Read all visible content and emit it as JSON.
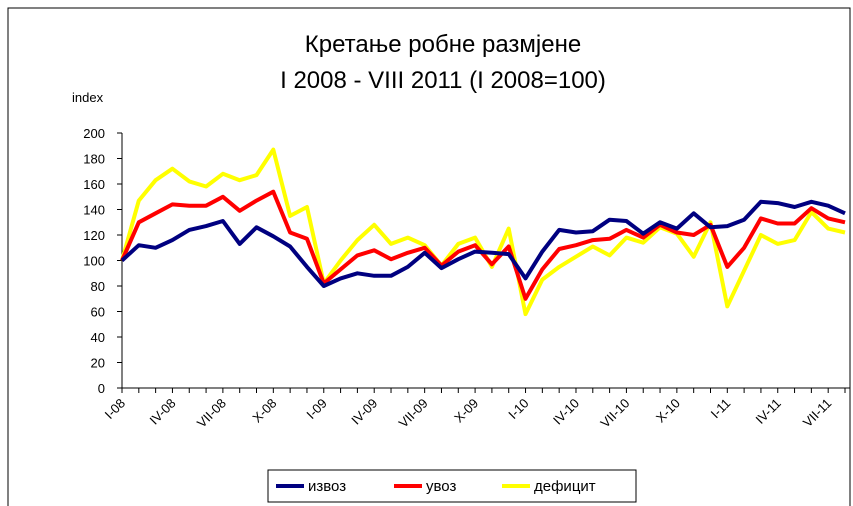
{
  "chart_data": {
    "type": "line",
    "title": "Кретање робне размјене",
    "subtitle": "I 2008 - VIII 2011 (I 2008=100)",
    "y_label": "index",
    "categories": [
      "I-08",
      null,
      null,
      "IV-08",
      null,
      null,
      "VII-08",
      null,
      null,
      "X-08",
      null,
      null,
      "I-09",
      null,
      null,
      "IV-09",
      null,
      null,
      "VII-09",
      null,
      null,
      "X-09",
      null,
      null,
      "I-10",
      null,
      null,
      "IV-10",
      null,
      null,
      "VII-10",
      null,
      null,
      "X-10",
      null,
      null,
      "I-11",
      null,
      null,
      "IV-11",
      null,
      null,
      "VII-11",
      null
    ],
    "series": [
      {
        "name": "извоз",
        "color": "#000080",
        "values": [
          100,
          112,
          110,
          116,
          124,
          127,
          131,
          113,
          126,
          119,
          111,
          95,
          80,
          86,
          90,
          88,
          88,
          95,
          106,
          94,
          101,
          107,
          106,
          105,
          86,
          107,
          124,
          122,
          123,
          132,
          131,
          121,
          130,
          125,
          137,
          126,
          127,
          132,
          146,
          145,
          142,
          146,
          143,
          137
        ]
      },
      {
        "name": "увоз",
        "color": "#ff0000",
        "values": [
          100,
          130,
          137,
          144,
          143,
          143,
          150,
          139,
          147,
          154,
          122,
          117,
          82,
          93,
          104,
          108,
          101,
          106,
          110,
          96,
          107,
          112,
          97,
          111,
          70,
          93,
          109,
          112,
          116,
          117,
          124,
          118,
          128,
          122,
          120,
          128,
          95,
          110,
          133,
          129,
          129,
          141,
          133,
          130
        ]
      },
      {
        "name": "дефицит",
        "color": "#ffff00",
        "values": [
          100,
          147,
          163,
          172,
          162,
          158,
          168,
          163,
          167,
          187,
          135,
          142,
          82,
          100,
          116,
          128,
          113,
          118,
          112,
          96,
          113,
          118,
          95,
          125,
          58,
          85,
          95,
          103,
          111,
          104,
          118,
          114,
          126,
          121,
          103,
          130,
          64,
          92,
          120,
          113,
          116,
          138,
          125,
          122
        ]
      }
    ],
    "ylim": [
      0,
      200
    ],
    "yticks": [
      0,
      20,
      40,
      60,
      80,
      100,
      120,
      140,
      160,
      180,
      200
    ],
    "grid": false,
    "legend": "bottom"
  }
}
